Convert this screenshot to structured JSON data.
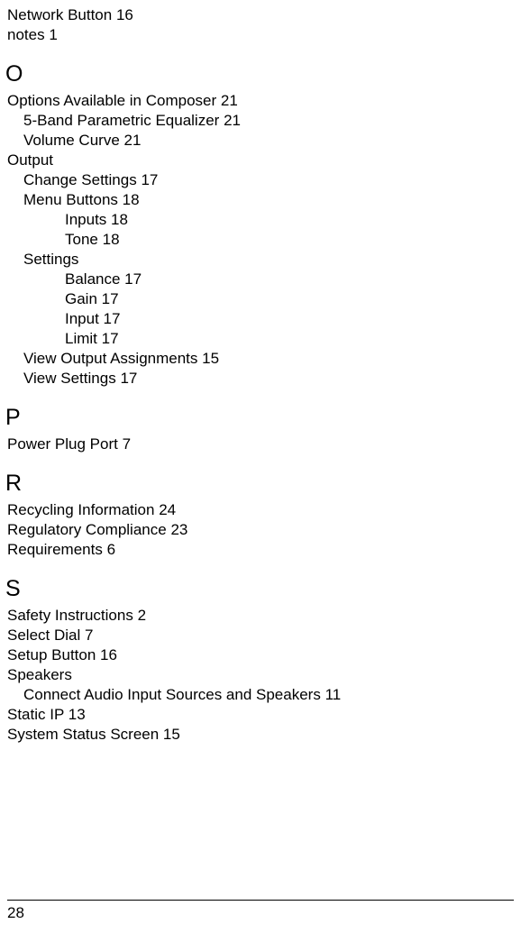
{
  "pre": [
    {
      "label": "Network Button",
      "page": "16",
      "indent": 0
    },
    {
      "label": "notes",
      "page": "1",
      "indent": 0
    }
  ],
  "sections": [
    {
      "letter": "O",
      "entries": [
        {
          "label": "Options Available in Composer",
          "page": "21",
          "indent": 0
        },
        {
          "label": "5-Band Parametric Equalizer",
          "page": "21",
          "indent": 1
        },
        {
          "label": "Volume Curve",
          "page": "21",
          "indent": 1
        },
        {
          "label": "Output",
          "page": "",
          "indent": 0
        },
        {
          "label": "Change Settings",
          "page": "17",
          "indent": 1
        },
        {
          "label": "Menu Buttons",
          "page": "18",
          "indent": 1
        },
        {
          "label": "Inputs",
          "page": "18",
          "indent": 2
        },
        {
          "label": "Tone",
          "page": "18",
          "indent": 2
        },
        {
          "label": "Settings",
          "page": "",
          "indent": 1
        },
        {
          "label": "Balance",
          "page": "17",
          "indent": 2
        },
        {
          "label": "Gain",
          "page": "17",
          "indent": 2
        },
        {
          "label": "Input",
          "page": "17",
          "indent": 2
        },
        {
          "label": "Limit",
          "page": "17",
          "indent": 2
        },
        {
          "label": "View Output Assignments",
          "page": "15",
          "indent": 1
        },
        {
          "label": "View Settings",
          "page": "17",
          "indent": 1
        }
      ]
    },
    {
      "letter": "P",
      "entries": [
        {
          "label": "Power Plug Port",
          "page": "7",
          "indent": 0
        }
      ]
    },
    {
      "letter": "R",
      "entries": [
        {
          "label": "Recycling Information",
          "page": "24",
          "indent": 0
        },
        {
          "label": "Regulatory Compliance",
          "page": "23",
          "indent": 0
        },
        {
          "label": "Requirements",
          "page": "6",
          "indent": 0
        }
      ]
    },
    {
      "letter": "S",
      "entries": [
        {
          "label": "Safety Instructions",
          "page": "2",
          "indent": 0
        },
        {
          "label": "Select Dial",
          "page": "7",
          "indent": 0
        },
        {
          "label": "Setup Button",
          "page": "16",
          "indent": 0
        },
        {
          "label": "Speakers",
          "page": "",
          "indent": 0
        },
        {
          "label": "Connect Audio Input Sources and Speakers",
          "page": "11",
          "indent": 1
        },
        {
          "label": "Static IP",
          "page": "13",
          "indent": 0
        },
        {
          "label": "System Status Screen",
          "page": "15",
          "indent": 0
        }
      ]
    }
  ],
  "page_number": "28"
}
